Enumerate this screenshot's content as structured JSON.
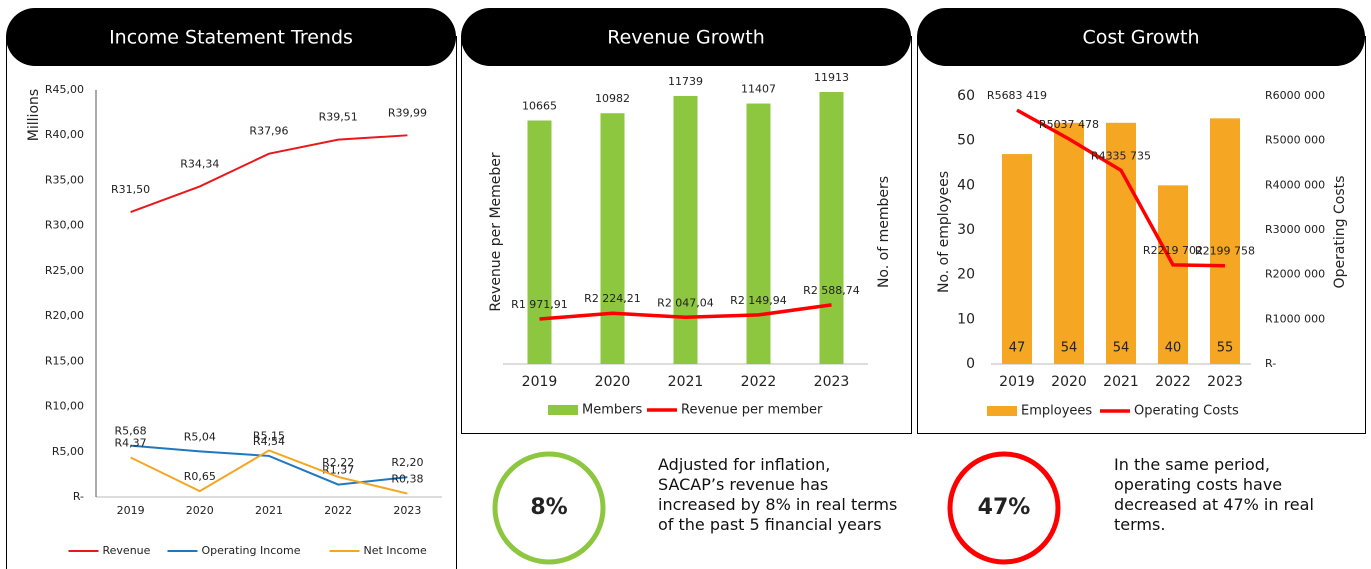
{
  "chart_data": [
    {
      "type": "line",
      "title": "Income Statement Trends",
      "ylabel": "Millions",
      "categories": [
        "2019",
        "2020",
        "2021",
        "2022",
        "2023"
      ],
      "ylim": [
        0,
        45
      ],
      "yticks": [
        {
          "value": 0,
          "label": "R-"
        },
        {
          "value": 5,
          "label": "R5,00"
        },
        {
          "value": 10,
          "label": "R10,00"
        },
        {
          "value": 15,
          "label": "R15,00"
        },
        {
          "value": 20,
          "label": "R20,00"
        },
        {
          "value": 25,
          "label": "R25,00"
        },
        {
          "value": 30,
          "label": "R30,00"
        },
        {
          "value": 35,
          "label": "R35,00"
        },
        {
          "value": 40,
          "label": "R40,00"
        },
        {
          "value": 45,
          "label": "R45,00"
        }
      ],
      "series": [
        {
          "name": "Revenue",
          "color": "#e8191c",
          "values": [
            31.5,
            34.34,
            37.96,
            39.51,
            39.99
          ],
          "value_labels": [
            "R31,50",
            "R34,34",
            "R37,96",
            "R39,51",
            "R39,99"
          ]
        },
        {
          "name": "Operating Income",
          "color": "#1f77c0",
          "values": [
            5.68,
            5.04,
            4.54,
            1.37,
            2.2
          ],
          "value_labels": [
            "R5,68",
            "R5,04",
            "R4,54",
            "R1,37",
            "R2,20"
          ]
        },
        {
          "name": "Net Income",
          "color": "#f5a623",
          "values": [
            4.37,
            0.65,
            5.15,
            2.22,
            0.38
          ],
          "value_labels": [
            "R4,37",
            "R0,65",
            "R5,15",
            "R2,22",
            "R0,38"
          ]
        }
      ]
    },
    {
      "type": "combo",
      "title": "Revenue Growth",
      "ylabel": "Revenue per Memeber",
      "y2label": "No. of members",
      "categories": [
        "2019",
        "2020",
        "2021",
        "2022",
        "2023"
      ],
      "ylim": [
        0,
        12000
      ],
      "y2lim": [
        0,
        12000
      ],
      "series": [
        {
          "name": "Members",
          "type": "bar",
          "axis": "y2",
          "color": "#8dc63f",
          "values": [
            10665,
            10982,
            11739,
            11407,
            11913
          ]
        },
        {
          "name": "Revenue per member",
          "type": "line",
          "color": "#ff0000",
          "values": [
            1971.91,
            2224.21,
            2047.04,
            2149.94,
            2588.74
          ],
          "value_labels": [
            "R1 971,91",
            "R2 224,21",
            "R2 047,04",
            "R2 149,94",
            "R2 588,74"
          ]
        }
      ]
    },
    {
      "type": "combo",
      "title": "Cost Growth",
      "ylabel": "No. of employees",
      "y2label": "Operating Costs",
      "categories": [
        "2019",
        "2020",
        "2021",
        "2022",
        "2023"
      ],
      "ylim": [
        0,
        60
      ],
      "yticks": [
        0,
        10,
        20,
        30,
        40,
        50,
        60
      ],
      "y2lim": [
        0,
        6000000
      ],
      "y2ticks": [
        {
          "value": 0,
          "label": "R-"
        },
        {
          "value": 1000000,
          "label": "R1000 000"
        },
        {
          "value": 2000000,
          "label": "R2000 000"
        },
        {
          "value": 3000000,
          "label": "R3000 000"
        },
        {
          "value": 4000000,
          "label": "R4000 000"
        },
        {
          "value": 5000000,
          "label": "R5000 000"
        },
        {
          "value": 6000000,
          "label": "R6000 000"
        }
      ],
      "series": [
        {
          "name": "Employees",
          "type": "bar",
          "color": "#f5a623",
          "values": [
            47,
            54,
            54,
            40,
            55
          ]
        },
        {
          "name": "Operating Costs",
          "type": "line",
          "axis": "y2",
          "color": "#ff0000",
          "values": [
            5683419,
            5037478,
            4335735,
            2219702,
            2199758
          ],
          "value_labels": [
            "R5683 419",
            "R5037 478",
            "R4335 735",
            "R2219 702",
            "R2199 758"
          ]
        }
      ]
    }
  ],
  "callouts": [
    {
      "value": "8%",
      "text": "Adjusted for inflation, SACAP’s revenue has increased by 8% in real terms of the past 5 financial years"
    },
    {
      "value": "47%",
      "text": "In the same period, operating costs have decreased at 47% in real terms."
    }
  ]
}
